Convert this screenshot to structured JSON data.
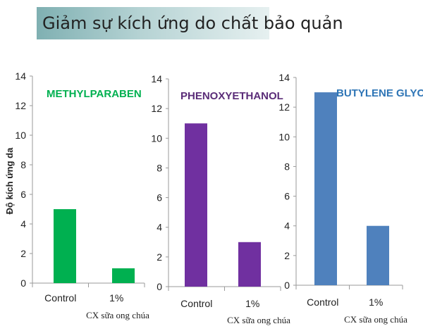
{
  "page": {
    "title": "Giảm sự kích ứng do chất bảo quản",
    "ylabel": "Độ kích ứng da",
    "xlabel": "CX sữa ong chúa"
  },
  "chart_data": [
    {
      "type": "bar",
      "title": "METHYLPARABEN",
      "title_color": "#00b050",
      "bar_color": "#00b050",
      "categories": [
        "Control",
        "1%"
      ],
      "values": [
        5,
        1
      ],
      "ylim": [
        0,
        14
      ],
      "yticks": [
        "0",
        "2",
        "4",
        "6",
        "8",
        "10",
        "12",
        "14"
      ],
      "ylabel": "Độ kích ứng da",
      "xlabel": "CX sữa ong chúa",
      "grid": false
    },
    {
      "type": "bar",
      "title": "PHENOXYETHANOL",
      "title_color": "#5a2c78",
      "bar_color": "#7030a0",
      "categories": [
        "Control",
        "1%"
      ],
      "values": [
        11,
        3
      ],
      "ylim": [
        0,
        14
      ],
      "yticks": [
        "0",
        "2",
        "4",
        "6",
        "8",
        "10",
        "12",
        "14"
      ],
      "xlabel": "CX sữa ong chúa",
      "grid": false
    },
    {
      "type": "bar",
      "title": "BUTYLENE GLYCOL",
      "title_color": "#2e75b6",
      "bar_color": "#4f81bd",
      "categories": [
        "Control",
        "1%"
      ],
      "values": [
        13,
        4
      ],
      "ylim": [
        0,
        14
      ],
      "yticks": [
        "0",
        "2",
        "4",
        "6",
        "8",
        "10",
        "12",
        "14"
      ],
      "xlabel": "CX sữa ong chúa",
      "grid": false
    }
  ]
}
